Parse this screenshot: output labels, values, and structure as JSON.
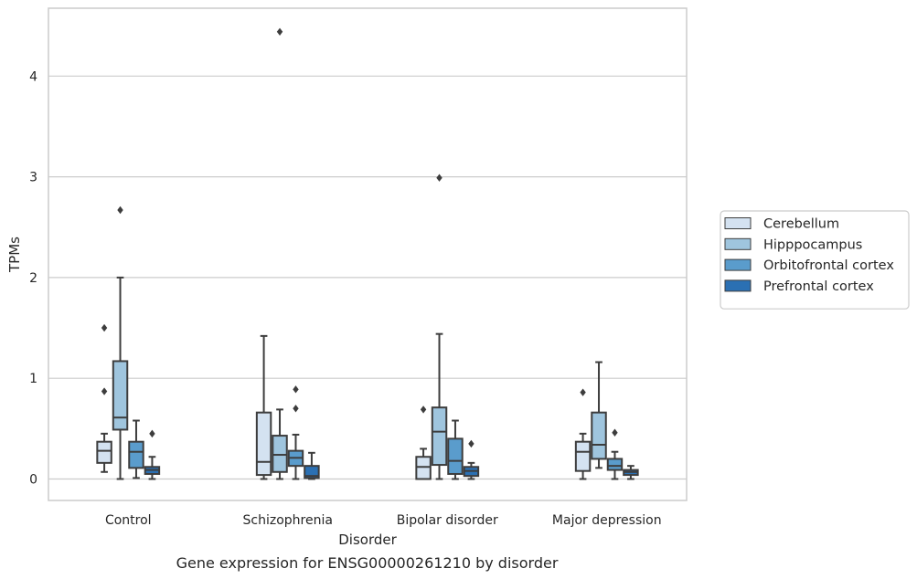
{
  "chart_data": {
    "type": "box",
    "title": "",
    "caption": "Gene expression for ENSG00000261210 by disorder",
    "xlabel": "Disorder",
    "ylabel": "TPMs",
    "ylim": [
      -0.22,
      4.7
    ],
    "yticks": [
      0,
      1,
      2,
      3,
      4
    ],
    "grid": "horizontal",
    "legend_position": "right",
    "categories": [
      "Control",
      "Schizophrenia",
      "Bipolar disorder",
      "Major depression"
    ],
    "series": [
      {
        "name": "Cerebellum",
        "color": "#d4e2f1",
        "boxes": [
          {
            "whisker_low": 0.07,
            "q1": 0.16,
            "median": 0.28,
            "q3": 0.37,
            "whisker_high": 0.45,
            "outliers": [
              0.87,
              1.5
            ]
          },
          {
            "whisker_low": 0.0,
            "q1": 0.04,
            "median": 0.17,
            "q3": 0.66,
            "whisker_high": 1.42,
            "outliers": []
          },
          {
            "whisker_low": 0.0,
            "q1": 0.0,
            "median": 0.12,
            "q3": 0.22,
            "whisker_high": 0.3,
            "outliers": [
              0.69
            ]
          },
          {
            "whisker_low": 0.0,
            "q1": 0.08,
            "median": 0.27,
            "q3": 0.37,
            "whisker_high": 0.45,
            "outliers": [
              0.86
            ]
          }
        ]
      },
      {
        "name": "Hipppocampus",
        "color": "#9fc5de",
        "boxes": [
          {
            "whisker_low": 0.0,
            "q1": 0.49,
            "median": 0.61,
            "q3": 1.17,
            "whisker_high": 2.0,
            "outliers": [
              2.67
            ]
          },
          {
            "whisker_low": 0.0,
            "q1": 0.07,
            "median": 0.24,
            "q3": 0.43,
            "whisker_high": 0.69,
            "outliers": [
              4.44
            ]
          },
          {
            "whisker_low": 0.0,
            "q1": 0.14,
            "median": 0.47,
            "q3": 0.71,
            "whisker_high": 1.44,
            "outliers": [
              2.99
            ]
          },
          {
            "whisker_low": 0.11,
            "q1": 0.2,
            "median": 0.34,
            "q3": 0.66,
            "whisker_high": 1.16,
            "outliers": []
          }
        ]
      },
      {
        "name": "Orbitofrontal cortex",
        "color": "#5a9ccc",
        "boxes": [
          {
            "whisker_low": 0.01,
            "q1": 0.11,
            "median": 0.27,
            "q3": 0.37,
            "whisker_high": 0.58,
            "outliers": []
          },
          {
            "whisker_low": 0.0,
            "q1": 0.13,
            "median": 0.21,
            "q3": 0.28,
            "whisker_high": 0.44,
            "outliers": [
              0.7,
              0.89
            ]
          },
          {
            "whisker_low": 0.0,
            "q1": 0.05,
            "median": 0.18,
            "q3": 0.4,
            "whisker_high": 0.58,
            "outliers": []
          },
          {
            "whisker_low": 0.0,
            "q1": 0.09,
            "median": 0.13,
            "q3": 0.2,
            "whisker_high": 0.27,
            "outliers": [
              0.46
            ]
          }
        ]
      },
      {
        "name": "Prefrontal cortex",
        "color": "#2b70b3",
        "boxes": [
          {
            "whisker_low": 0.0,
            "q1": 0.05,
            "median": 0.09,
            "q3": 0.12,
            "whisker_high": 0.22,
            "outliers": [
              0.45
            ]
          },
          {
            "whisker_low": 0.0,
            "q1": 0.01,
            "median": 0.03,
            "q3": 0.13,
            "whisker_high": 0.26,
            "outliers": []
          },
          {
            "whisker_low": 0.0,
            "q1": 0.03,
            "median": 0.08,
            "q3": 0.12,
            "whisker_high": 0.16,
            "outliers": [
              0.35
            ]
          },
          {
            "whisker_low": 0.0,
            "q1": 0.04,
            "median": 0.07,
            "q3": 0.09,
            "whisker_high": 0.13,
            "outliers": []
          }
        ]
      }
    ]
  },
  "colors": {
    "grid": "#cccccc",
    "frame": "#cccccc",
    "box_edge": "#3d3d3d"
  }
}
